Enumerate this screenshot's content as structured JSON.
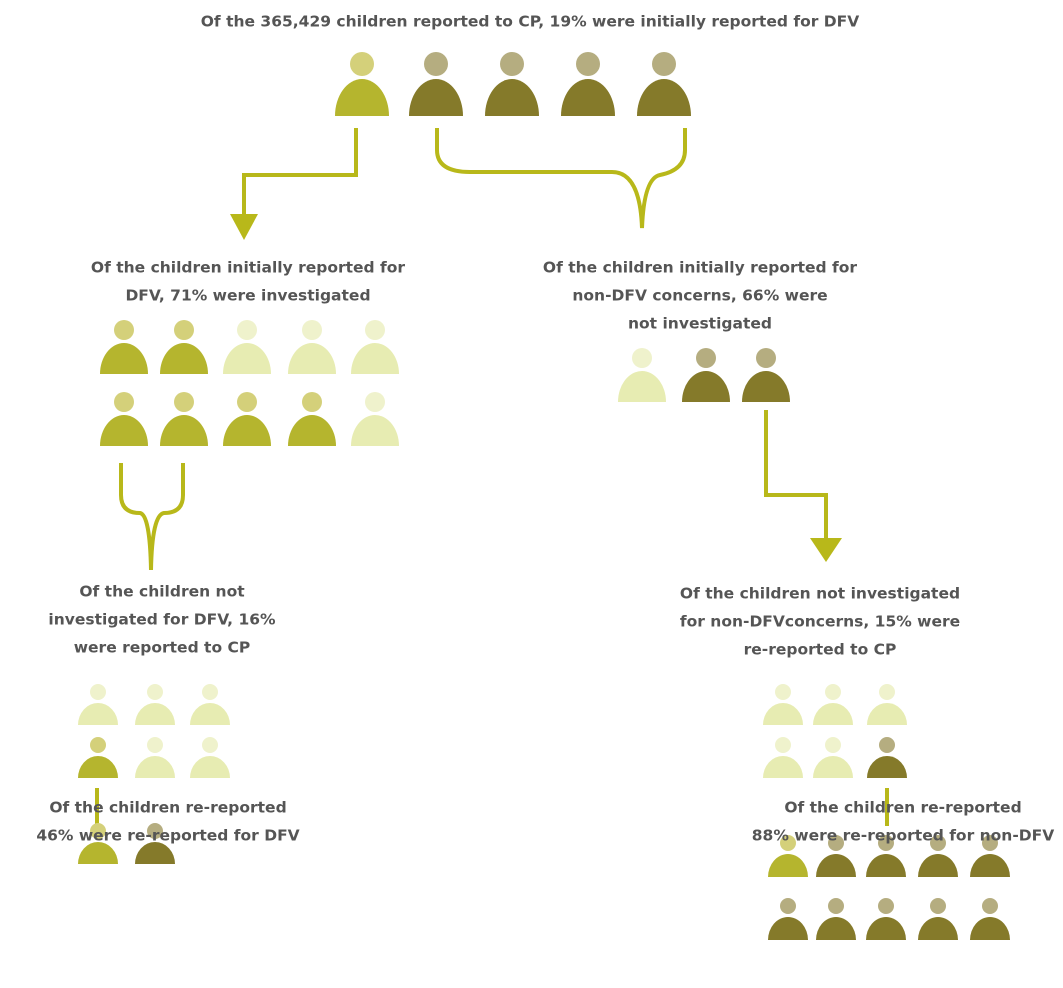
{
  "title": "Of the 365,429 children reported to CP, 19% were initially reported for DFV",
  "nodes": [
    {
      "lines": [
        "Of the children initially reported for",
        "DFV, 71% were investigated"
      ]
    },
    {
      "lines": [
        "Of the children initially reported for",
        "non-DFV concerns, 66% were",
        "not investigated"
      ]
    },
    {
      "lines": [
        "Of the children not",
        "investigated for DFV, 16%",
        "were reported to CP"
      ]
    },
    {
      "lines": [
        "Of the children not investigated",
        "for non-DFVconcerns, 15% were",
        "re-reported to CP"
      ]
    },
    {
      "lines": [
        "Of the children re-reported",
        "46% were re-reported for DFV"
      ]
    },
    {
      "lines": [
        "Of the children re-reported",
        "88% were re-reported for non-DFV"
      ]
    }
  ]
}
